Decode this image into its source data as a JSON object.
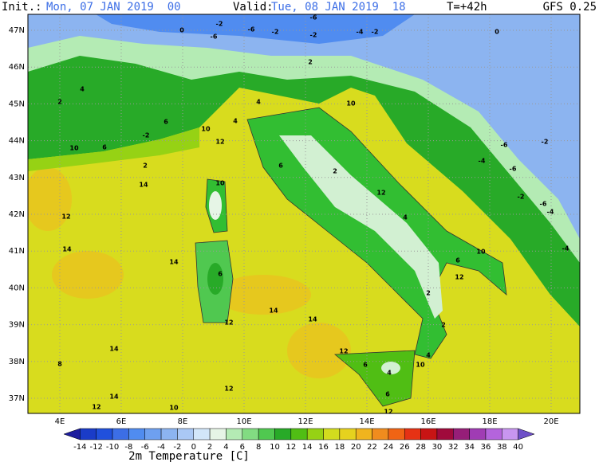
{
  "header": {
    "init_label": "Init.:",
    "init": "Mon, 07 JAN 2019  00",
    "valid_label": "Valid:",
    "valid": "Tue, 08 JAN 2019  18",
    "lead": "T=+42h",
    "model": "GFS 0.25"
  },
  "map": {
    "lat_labels": [
      "47N",
      "46N",
      "45N",
      "44N",
      "43N",
      "42N",
      "41N",
      "40N",
      "39N",
      "38N",
      "37N"
    ],
    "lon_labels": [
      "4E",
      "6E",
      "8E",
      "10E",
      "12E",
      "14E",
      "16E",
      "18E",
      "20E"
    ],
    "contour_labels": [
      0,
      -2,
      -6,
      -6,
      -2,
      -6,
      -2,
      -4,
      -2,
      0,
      2,
      4,
      2,
      4,
      10,
      4,
      6,
      10,
      -2,
      12,
      10,
      6,
      -6,
      -2,
      -4,
      -6,
      2,
      6,
      2,
      14,
      10,
      12,
      -2,
      -6,
      12,
      -4,
      4,
      14,
      14,
      10,
      -4,
      6,
      6,
      12,
      14,
      2,
      14,
      12,
      2,
      14,
      12,
      4,
      8,
      6,
      10,
      4,
      14,
      12,
      6,
      12,
      10,
      12
    ]
  },
  "colorbar": {
    "title": "2m Temperature [C]",
    "labels": [
      -14,
      -12,
      -10,
      -8,
      -6,
      -4,
      -2,
      0,
      2,
      4,
      6,
      8,
      10,
      12,
      14,
      16,
      18,
      20,
      22,
      24,
      26,
      28,
      30,
      32,
      34,
      36,
      38,
      40
    ],
    "colors": [
      "#1e1e9e",
      "#1a3cc8",
      "#2050dc",
      "#3c6ee6",
      "#508cf0",
      "#6ea0f0",
      "#8cb4f0",
      "#aac8f5",
      "#d2e6fa",
      "#e6f5e6",
      "#b4ebb4",
      "#82dc82",
      "#50c850",
      "#28aa28",
      "#50be14",
      "#96d214",
      "#d2dc1e",
      "#e6d21e",
      "#f0b41e",
      "#f08c1e",
      "#f06414",
      "#e63214",
      "#c81414",
      "#a00a3c",
      "#961e78",
      "#a03cb4",
      "#b464dc",
      "#c896f0",
      "#6e50c8"
    ]
  }
}
